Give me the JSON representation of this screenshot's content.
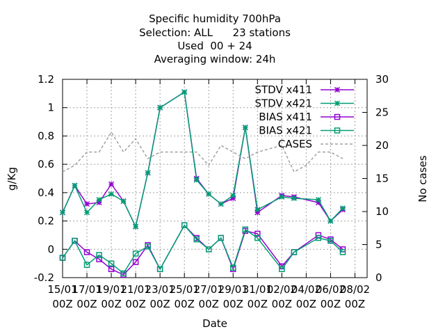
{
  "chart_data": {
    "type": "line",
    "title_lines": [
      "Specific humidity 700hPa",
      "Selection: ALL      23 stations",
      "Used  00 + 24",
      "Averaging window: 24h"
    ],
    "xlabel": "Date",
    "ylabel": "g/Kg",
    "y2label": "No cases",
    "ylim": [
      -0.2,
      1.2
    ],
    "y2lim": [
      0,
      30
    ],
    "yticks": [
      "-0.2",
      "0",
      "0.2",
      "0.4",
      "0.6",
      "0.8",
      "1",
      "1.2"
    ],
    "y2ticks": [
      "0",
      "5",
      "10",
      "15",
      "20",
      "25",
      "30"
    ],
    "xlim": [
      0,
      25
    ],
    "xticks": [
      {
        "x": 0,
        "l1": "15/01",
        "l2": "00Z"
      },
      {
        "x": 2,
        "l1": "17/01",
        "l2": "00Z"
      },
      {
        "x": 4,
        "l1": "19/01",
        "l2": "00Z"
      },
      {
        "x": 6,
        "l1": "21/01",
        "l2": "00Z"
      },
      {
        "x": 8,
        "l1": "23/01",
        "l2": "00Z"
      },
      {
        "x": 10,
        "l1": "25/01",
        "l2": "00Z"
      },
      {
        "x": 12,
        "l1": "27/01",
        "l2": "00Z"
      },
      {
        "x": 14,
        "l1": "29/01",
        "l2": "00Z"
      },
      {
        "x": 16,
        "l1": "31/01",
        "l2": "00Z"
      },
      {
        "x": 18,
        "l1": "02/02",
        "l2": "00Z"
      },
      {
        "x": 20,
        "l1": "04/02",
        "l2": "00Z"
      },
      {
        "x": 22,
        "l1": "06/02",
        "l2": "00Z"
      },
      {
        "x": 24,
        "l1": "08/02",
        "l2": "00Z"
      }
    ],
    "grid": true,
    "legend_position": "top-right",
    "series": [
      {
        "name": "STDV x411",
        "axis": "y1",
        "marker": "star",
        "color": "#9400d3",
        "points": [
          [
            0,
            0.26
          ],
          [
            1,
            0.45
          ],
          [
            2,
            0.32
          ],
          [
            3,
            0.33
          ],
          [
            4,
            0.46
          ],
          [
            5,
            0.34
          ],
          [
            6,
            0.16
          ],
          [
            7,
            0.54
          ],
          [
            8,
            1.0
          ],
          [
            10,
            1.11
          ],
          [
            11,
            0.5
          ],
          [
            12,
            0.39
          ],
          [
            13,
            0.32
          ],
          [
            14,
            0.36
          ],
          [
            15,
            0.86
          ],
          [
            16,
            0.26
          ],
          [
            18,
            0.38
          ],
          [
            19,
            0.37
          ],
          [
            21,
            0.33
          ],
          [
            22,
            0.2
          ],
          [
            23,
            0.28
          ]
        ]
      },
      {
        "name": "STDV x421",
        "axis": "y1",
        "marker": "star",
        "color": "#009e73",
        "points": [
          [
            0,
            0.26
          ],
          [
            1,
            0.45
          ],
          [
            2,
            0.26
          ],
          [
            3,
            0.35
          ],
          [
            4,
            0.39
          ],
          [
            5,
            0.34
          ],
          [
            6,
            0.16
          ],
          [
            7,
            0.54
          ],
          [
            8,
            1.0
          ],
          [
            10,
            1.11
          ],
          [
            11,
            0.49
          ],
          [
            12,
            0.39
          ],
          [
            13,
            0.32
          ],
          [
            14,
            0.38
          ],
          [
            15,
            0.86
          ],
          [
            16,
            0.28
          ],
          [
            18,
            0.37
          ],
          [
            19,
            0.36
          ],
          [
            21,
            0.35
          ],
          [
            22,
            0.2
          ],
          [
            23,
            0.29
          ]
        ]
      },
      {
        "name": "BIAS x411",
        "axis": "y1",
        "marker": "square",
        "color": "#9400d3",
        "points": [
          [
            0,
            -0.06
          ],
          [
            1,
            0.06
          ],
          [
            2,
            -0.02
          ],
          [
            3,
            -0.07
          ],
          [
            4,
            -0.14
          ],
          [
            5,
            -0.18
          ],
          [
            6,
            -0.09
          ],
          [
            7,
            0.03
          ],
          [
            8,
            -0.14
          ],
          [
            10,
            0.17
          ],
          [
            11,
            0.08
          ],
          [
            12,
            0.0
          ],
          [
            13,
            0.08
          ],
          [
            14,
            -0.14
          ],
          [
            15,
            0.13
          ],
          [
            16,
            0.11
          ],
          [
            18,
            -0.12
          ],
          [
            19,
            -0.02
          ],
          [
            21,
            0.1
          ],
          [
            22,
            0.07
          ],
          [
            23,
            0.0
          ]
        ]
      },
      {
        "name": "BIAS x421",
        "axis": "y1",
        "marker": "square",
        "color": "#009e73",
        "points": [
          [
            0,
            -0.06
          ],
          [
            1,
            0.06
          ],
          [
            2,
            -0.11
          ],
          [
            3,
            -0.04
          ],
          [
            4,
            -0.1
          ],
          [
            5,
            -0.17
          ],
          [
            6,
            -0.03
          ],
          [
            7,
            0.02
          ],
          [
            8,
            -0.14
          ],
          [
            10,
            0.17
          ],
          [
            11,
            0.07
          ],
          [
            12,
            0.0
          ],
          [
            13,
            0.08
          ],
          [
            14,
            -0.13
          ],
          [
            15,
            0.14
          ],
          [
            16,
            0.08
          ],
          [
            18,
            -0.14
          ],
          [
            19,
            -0.02
          ],
          [
            21,
            0.08
          ],
          [
            22,
            0.06
          ],
          [
            23,
            -0.02
          ]
        ]
      },
      {
        "name": "CASES",
        "axis": "y2",
        "marker": "none",
        "color": "#a0a0a0",
        "dashed": true,
        "points": [
          [
            0,
            16
          ],
          [
            1,
            17
          ],
          [
            2,
            19
          ],
          [
            3,
            19
          ],
          [
            4,
            22
          ],
          [
            5,
            19
          ],
          [
            6,
            21
          ],
          [
            7,
            18
          ],
          [
            8,
            19
          ],
          [
            11,
            19
          ],
          [
            12,
            17
          ],
          [
            13,
            20
          ],
          [
            14,
            19
          ],
          [
            15,
            18
          ],
          [
            16,
            19
          ],
          [
            18,
            20
          ],
          [
            19,
            16
          ],
          [
            20,
            17
          ],
          [
            21,
            19
          ],
          [
            22,
            19
          ],
          [
            23,
            18
          ]
        ]
      }
    ]
  }
}
